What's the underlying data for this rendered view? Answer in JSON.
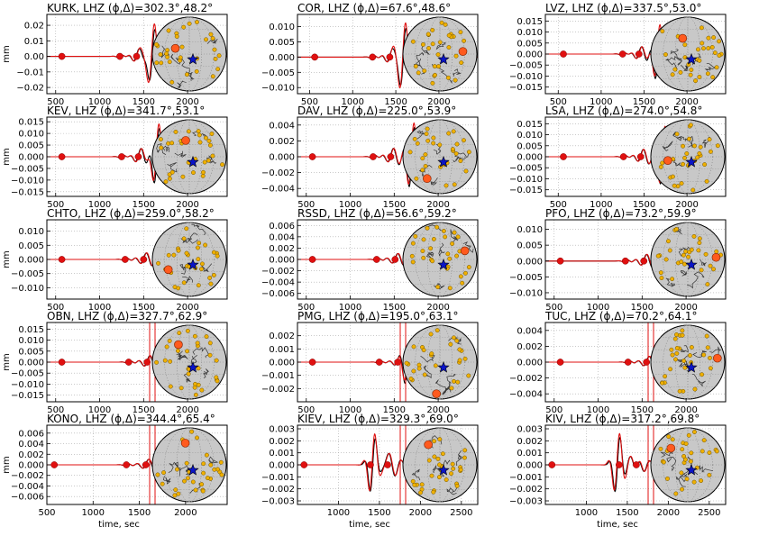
{
  "figure": {
    "colors": {
      "observed": "#000000",
      "synthetic": "#e01010",
      "pick": "#e01010",
      "globe_fill": "#c8c8c8",
      "station": "#f0b000",
      "target_station": "#ff5a1e",
      "event": "#0a14c8"
    }
  },
  "chart_data": [
    {
      "type": "line",
      "station": "KURK",
      "title": "KURK, LHZ (ϕ,Δ)=302.3°,48.2°",
      "xlim": [
        400,
        2450
      ],
      "ylim": [
        -0.024,
        0.027
      ],
      "xticks": [
        500,
        1000,
        1500,
        2000
      ],
      "xticklabels": [
        "500",
        "1000",
        "1500",
        "2000"
      ],
      "yticks": [
        -0.02,
        -0.01,
        0.0,
        0.01,
        0.02
      ],
      "yticklabels": [
        "−0.02",
        "−0.01",
        "0.00",
        "0.01",
        "0.02"
      ],
      "ylabel": "mm",
      "xlabel": "",
      "picks": [
        570,
        1230,
        1420
      ],
      "amp": 0.024,
      "peak": 1600,
      "inGlobe": false,
      "series": [
        {
          "values": "observed"
        },
        {
          "values": "synthetic"
        }
      ],
      "station_marker": {
        "azimuth_deg": 302.3,
        "distance_deg": 48.2
      }
    },
    {
      "type": "line",
      "station": "COR",
      "title": "COR, LHZ (ϕ,Δ)=67.6°,48.6°",
      "xlim": [
        360,
        2450
      ],
      "ylim": [
        -0.012,
        0.014
      ],
      "xticks": [
        500,
        1000,
        1500,
        2000
      ],
      "xticklabels": [
        "500",
        "1000",
        "1500",
        "2000"
      ],
      "yticks": [
        -0.01,
        -0.005,
        0.0,
        0.005,
        0.01
      ],
      "yticklabels": [
        "−0.010",
        "−0.005",
        "0.000",
        "0.005",
        "0.010"
      ],
      "ylabel": "",
      "xlabel": "",
      "picks": [
        560,
        1230,
        1430
      ],
      "amp": 0.012,
      "peak": 1590,
      "inGlobe": false,
      "station_marker": {
        "azimuth_deg": 67.6,
        "distance_deg": 48.6
      }
    },
    {
      "type": "line",
      "station": "LVZ",
      "title": "LVZ, LHZ (ϕ,Δ)=337.5°,53.0°",
      "xlim": [
        350,
        2450
      ],
      "ylim": [
        -0.018,
        0.018
      ],
      "xticks": [
        500,
        1000,
        1500,
        2000
      ],
      "xticklabels": [
        "500",
        "1000",
        "1500",
        "2000"
      ],
      "yticks": [
        -0.015,
        -0.01,
        -0.005,
        0.0,
        0.005,
        0.01,
        0.015
      ],
      "yticklabels": [
        "−0.015",
        "−0.010",
        "−0.005",
        "0.000",
        "0.005",
        "0.010",
        "0.015"
      ],
      "ylabel": "",
      "xlabel": "",
      "picks": [
        560,
        1250,
        1440
      ],
      "amp": 0.016,
      "peak": 1660,
      "inGlobe": false,
      "station_marker": {
        "azimuth_deg": 337.5,
        "distance_deg": 53.0
      }
    },
    {
      "type": "line",
      "station": "KEV",
      "title": "KEV, LHZ (ϕ,Δ)=341.7°,53.1°",
      "xlim": [
        400,
        2450
      ],
      "ylim": [
        -0.017,
        0.017
      ],
      "xticks": [
        500,
        1000,
        1500,
        2000
      ],
      "xticklabels": [
        "500",
        "1000",
        "1500",
        "2000"
      ],
      "yticks": [
        -0.015,
        -0.01,
        -0.005,
        0.0,
        0.005,
        0.01,
        0.015
      ],
      "yticklabels": [
        "−0.015",
        "−0.010",
        "−0.005",
        "0.000",
        "0.005",
        "0.010",
        "0.015"
      ],
      "ylabel": "mm",
      "xlabel": "",
      "picks": [
        570,
        1250,
        1440
      ],
      "amp": 0.017,
      "peak": 1650,
      "inGlobe": false,
      "station_marker": {
        "azimuth_deg": 341.7,
        "distance_deg": 53.1
      }
    },
    {
      "type": "line",
      "station": "DAV",
      "title": "DAV, LHZ (ϕ,Δ)=225.0°,53.9°",
      "xlim": [
        400,
        2450
      ],
      "ylim": [
        -0.005,
        0.005
      ],
      "xticks": [
        500,
        1000,
        1500,
        2000
      ],
      "xticklabels": [
        "500",
        "1000",
        "1500",
        "2000"
      ],
      "yticks": [
        -0.004,
        -0.002,
        0.0,
        0.002,
        0.004
      ],
      "yticklabels": [
        "−0.004",
        "−0.002",
        "0.000",
        "0.002",
        "0.004"
      ],
      "ylabel": "",
      "xlabel": "",
      "picks": [
        570,
        1260,
        1460
      ],
      "amp": 0.005,
      "peak": 1700,
      "inGlobe": false,
      "station_marker": {
        "azimuth_deg": 225.0,
        "distance_deg": 53.9
      }
    },
    {
      "type": "line",
      "station": "LSA",
      "title": "LSA, LHZ (ϕ,Δ)=274.0°,54.8°",
      "xlim": [
        350,
        2450
      ],
      "ylim": [
        -0.018,
        0.018
      ],
      "xticks": [
        500,
        1000,
        1500,
        2000
      ],
      "xticklabels": [
        "500",
        "1000",
        "1500",
        "2000"
      ],
      "yticks": [
        -0.015,
        -0.01,
        -0.005,
        0.0,
        0.005,
        0.01,
        0.015
      ],
      "yticklabels": [
        "−0.015",
        "−0.010",
        "−0.005",
        "0.000",
        "0.005",
        "0.010",
        "0.015"
      ],
      "ylabel": "",
      "xlabel": "",
      "picks": [
        560,
        1260,
        1460
      ],
      "amp": 0.016,
      "peak": 1720,
      "inGlobe": false,
      "station_marker": {
        "azimuth_deg": 274.0,
        "distance_deg": 54.8
      }
    },
    {
      "type": "line",
      "station": "CHTO",
      "title": "CHTO, LHZ (ϕ,Δ)=259.0°,58.2°",
      "xlim": [
        400,
        2450
      ],
      "ylim": [
        -0.014,
        0.014
      ],
      "xticks": [
        500,
        1000,
        1500,
        2000
      ],
      "xticklabels": [
        "500",
        "1000",
        "1500",
        "2000"
      ],
      "yticks": [
        -0.01,
        -0.005,
        0.0,
        0.005,
        0.01
      ],
      "yticklabels": [
        "−0.010",
        "−0.005",
        "0.000",
        "0.005",
        "0.010"
      ],
      "ylabel": "mm",
      "xlabel": "",
      "picks": [
        570,
        1290,
        1500
      ],
      "amp": 0.011,
      "peak": 1760,
      "inGlobe": false,
      "station_marker": {
        "azimuth_deg": 259.0,
        "distance_deg": 58.2
      }
    },
    {
      "type": "line",
      "station": "RSSD",
      "title": "RSSD, LHZ (ϕ,Δ)=56.6°,59.2°",
      "xlim": [
        400,
        2450
      ],
      "ylim": [
        -0.007,
        0.007
      ],
      "xticks": [
        500,
        1000,
        1500,
        2000
      ],
      "xticklabels": [
        "500",
        "1000",
        "1500",
        "2000"
      ],
      "yticks": [
        -0.006,
        -0.004,
        -0.002,
        0.0,
        0.002,
        0.004,
        0.006
      ],
      "yticklabels": [
        "−0.006",
        "−0.004",
        "−0.002",
        "0.000",
        "0.002",
        "0.004",
        "0.006"
      ],
      "ylabel": "",
      "xlabel": "",
      "picks": [
        570,
        1300,
        1510
      ],
      "amp": 0.005,
      "peak": 1800,
      "inGlobe": false,
      "station_marker": {
        "azimuth_deg": 56.6,
        "distance_deg": 59.2
      }
    },
    {
      "type": "line",
      "station": "PFO",
      "title": "PFO, LHZ (ϕ,Δ)=73.2°,59.9°",
      "xlim": [
        400,
        2450
      ],
      "ylim": [
        -0.012,
        0.013
      ],
      "xticks": [
        500,
        1000,
        1500,
        2000
      ],
      "xticklabels": [
        "500",
        "1000",
        "1500",
        "2000"
      ],
      "yticks": [
        -0.01,
        -0.005,
        0.0,
        0.005,
        0.01
      ],
      "yticklabels": [
        "−0.010",
        "−0.005",
        "0.000",
        "0.005",
        "0.010"
      ],
      "ylabel": "",
      "xlabel": "",
      "picks": [
        570,
        1310,
        1520
      ],
      "amp": 0.01,
      "peak": 1830,
      "inGlobe": false,
      "station_marker": {
        "azimuth_deg": 73.2,
        "distance_deg": 59.9
      }
    },
    {
      "type": "line",
      "station": "OBN",
      "title": "OBN, LHZ (ϕ,Δ)=327.7°,62.9°",
      "xlim": [
        400,
        2450
      ],
      "ylim": [
        -0.018,
        0.018
      ],
      "xticks": [
        500,
        1000,
        1500,
        2000
      ],
      "xticklabels": [
        "500",
        "1000",
        "1500",
        "2000"
      ],
      "yticks": [
        -0.015,
        -0.01,
        -0.005,
        0.0,
        0.005,
        0.01,
        0.015
      ],
      "yticklabels": [
        "−0.015",
        "−0.010",
        "−0.005",
        "0.000",
        "0.005",
        "0.010",
        "0.015"
      ],
      "ylabel": "mm",
      "xlabel": "",
      "picks": [
        570,
        1330,
        1540
      ],
      "amp": 0.014,
      "peak": 1900,
      "inGlobe": true,
      "station_marker": {
        "azimuth_deg": 327.7,
        "distance_deg": 62.9
      }
    },
    {
      "type": "line",
      "station": "PMG",
      "title": "PMG, LHZ (ϕ,Δ)=195.0°,63.1°",
      "xlim": [
        400,
        2450
      ],
      "ylim": [
        -0.003,
        0.003
      ],
      "xticks": [
        500,
        1000,
        1500,
        2000
      ],
      "xticklabels": [
        "500",
        "1000",
        "1500",
        "2000"
      ],
      "yticks": [
        -0.002,
        -0.001,
        0.0,
        0.001,
        0.002
      ],
      "yticklabels": [
        "−0.002",
        "−0.001",
        "0.000",
        "0.001",
        "0.002"
      ],
      "ylabel": "",
      "xlabel": "",
      "picks": [
        570,
        1330,
        1540
      ],
      "amp": 0.0018,
      "peak": 1650,
      "inGlobe": true,
      "station_marker": {
        "azimuth_deg": 195.0,
        "distance_deg": 63.1
      }
    },
    {
      "type": "line",
      "station": "TUC",
      "title": "TUC, LHZ (ϕ,Δ)=70.2°,64.1°",
      "xlim": [
        400,
        2450
      ],
      "ylim": [
        -0.005,
        0.005
      ],
      "xticks": [
        500,
        1000,
        1500,
        2000
      ],
      "xticklabels": [
        "500",
        "1000",
        "1500",
        "2000"
      ],
      "yticks": [
        -0.004,
        -0.002,
        0.0,
        0.002,
        0.004
      ],
      "yticklabels": [
        "−0.004",
        "−0.002",
        "0.000",
        "0.002",
        "0.004"
      ],
      "ylabel": "",
      "xlabel": "",
      "picks": [
        570,
        1340,
        1550
      ],
      "amp": 0.0035,
      "peak": 1920,
      "inGlobe": true,
      "station_marker": {
        "azimuth_deg": 70.2,
        "distance_deg": 64.1
      }
    },
    {
      "type": "line",
      "station": "KONO",
      "title": "KONO, LHZ (ϕ,Δ)=344.4°,65.4°",
      "xlim": [
        500,
        2450
      ],
      "ylim": [
        -0.0075,
        0.0075
      ],
      "xticks": [
        500,
        1000,
        1500,
        2000
      ],
      "xticklabels": [
        "500",
        "1000",
        "1500",
        "2000"
      ],
      "yticks": [
        -0.006,
        -0.004,
        -0.002,
        0.0,
        0.002,
        0.004,
        0.006
      ],
      "yticklabels": [
        "−0.006",
        "−0.004",
        "−0.002",
        "0.000",
        "0.002",
        "0.004",
        "0.006"
      ],
      "ylabel": "mm",
      "xlabel": "time, sec",
      "picks": [
        580,
        1360,
        1570
      ],
      "amp": 0.005,
      "peak": 1960,
      "inGlobe": true,
      "station_marker": {
        "azimuth_deg": 344.4,
        "distance_deg": 65.4
      }
    },
    {
      "type": "line",
      "station": "KIEV",
      "title": "KIEV, LHZ (ϕ,Δ)=329.3°,69.0°",
      "xlim": [
        500,
        2700
      ],
      "ylim": [
        -0.0033,
        0.0033
      ],
      "xticks": [
        1000,
        1500,
        2000,
        2500
      ],
      "xticklabels": [
        "1000",
        "1500",
        "2000",
        "2500"
      ],
      "yticks": [
        -0.003,
        -0.002,
        -0.001,
        0.0,
        0.001,
        0.002,
        0.003
      ],
      "yticklabels": [
        "−0.003",
        "−0.002",
        "−0.001",
        "0.000",
        "0.001",
        "0.002",
        "0.003"
      ],
      "ylabel": "",
      "xlabel": "time, sec",
      "picks": [
        580,
        1390,
        1600
      ],
      "amp": 0.003,
      "peak": 1420,
      "inGlobe": true,
      "station_marker": {
        "azimuth_deg": 329.3,
        "distance_deg": 69.0
      }
    },
    {
      "type": "line",
      "station": "KIV",
      "title": "KIV, LHZ (ϕ,Δ)=317.2°,69.8°",
      "xlim": [
        500,
        2700
      ],
      "ylim": [
        -0.0033,
        0.0033
      ],
      "xticks": [
        1000,
        1500,
        2000,
        2500
      ],
      "xticklabels": [
        "1000",
        "1500",
        "2000",
        "2500"
      ],
      "yticks": [
        -0.003,
        -0.002,
        -0.001,
        0.0,
        0.001,
        0.002,
        0.003
      ],
      "yticklabels": [
        "−0.003",
        "−0.002",
        "−0.001",
        "0.000",
        "0.001",
        "0.002",
        "0.003"
      ],
      "ylabel": "",
      "xlabel": "time, sec",
      "picks": [
        580,
        1400,
        1610
      ],
      "amp": 0.003,
      "peak": 1380,
      "inGlobe": true,
      "station_marker": {
        "azimuth_deg": 317.2,
        "distance_deg": 69.8
      }
    }
  ]
}
